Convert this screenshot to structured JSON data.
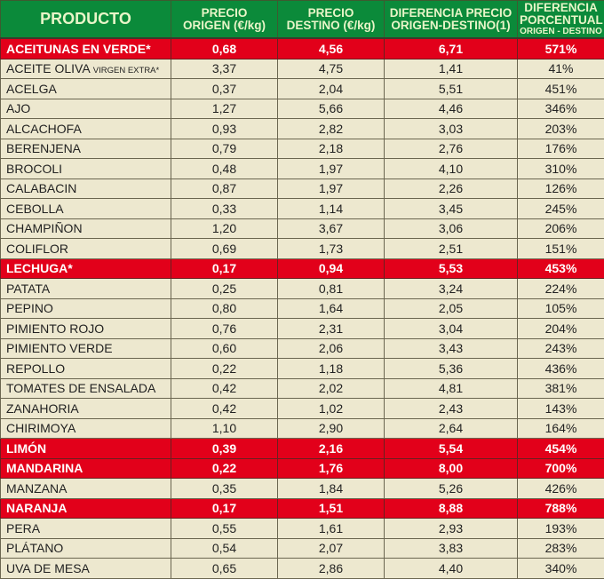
{
  "table": {
    "headers": {
      "product": "PRODUCTO",
      "origin_l1": "PRECIO",
      "origin_l2": "ORIGEN (€/kg)",
      "dest_l1": "PRECIO",
      "dest_l2": "DESTINO (€/kg)",
      "diff_l1": "DIFERENCIA PRECIO",
      "diff_l2": "ORIGEN-DESTINO(1)",
      "pct_l1": "DIFERENCIA",
      "pct_l2": "PORCENTUAL",
      "pct_l3": "ORIGEN - DESTINO"
    },
    "highlight_color": "#e2001a",
    "header_color": "#0b8a3a",
    "rows": [
      {
        "name": "ACEITUNAS EN VERDE*",
        "suffix": "",
        "origin": "0,68",
        "dest": "4,56",
        "diff": "6,71",
        "pct": "571%",
        "highlight": true
      },
      {
        "name": "ACEITE OLIVA ",
        "suffix": "VIRGEN EXTRA*",
        "origin": "3,37",
        "dest": "4,75",
        "diff": "1,41",
        "pct": "41%",
        "highlight": false
      },
      {
        "name": "ACELGA",
        "suffix": "",
        "origin": "0,37",
        "dest": "2,04",
        "diff": "5,51",
        "pct": "451%",
        "highlight": false
      },
      {
        "name": "AJO",
        "suffix": "",
        "origin": "1,27",
        "dest": "5,66",
        "diff": "4,46",
        "pct": "346%",
        "highlight": false
      },
      {
        "name": "ALCACHOFA",
        "suffix": "",
        "origin": "0,93",
        "dest": "2,82",
        "diff": "3,03",
        "pct": "203%",
        "highlight": false
      },
      {
        "name": "BERENJENA",
        "suffix": "",
        "origin": "0,79",
        "dest": "2,18",
        "diff": "2,76",
        "pct": "176%",
        "highlight": false
      },
      {
        "name": "BROCOLI",
        "suffix": "",
        "origin": "0,48",
        "dest": "1,97",
        "diff": "4,10",
        "pct": "310%",
        "highlight": false
      },
      {
        "name": "CALABACIN",
        "suffix": "",
        "origin": "0,87",
        "dest": "1,97",
        "diff": "2,26",
        "pct": "126%",
        "highlight": false
      },
      {
        "name": "CEBOLLA",
        "suffix": "",
        "origin": "0,33",
        "dest": "1,14",
        "diff": "3,45",
        "pct": "245%",
        "highlight": false
      },
      {
        "name": "CHAMPIÑON",
        "suffix": "",
        "origin": "1,20",
        "dest": "3,67",
        "diff": "3,06",
        "pct": "206%",
        "highlight": false
      },
      {
        "name": "COLIFLOR",
        "suffix": "",
        "origin": "0,69",
        "dest": "1,73",
        "diff": "2,51",
        "pct": "151%",
        "highlight": false
      },
      {
        "name": "LECHUGA*",
        "suffix": "",
        "origin": "0,17",
        "dest": "0,94",
        "diff": "5,53",
        "pct": "453%",
        "highlight": true
      },
      {
        "name": "PATATA",
        "suffix": "",
        "origin": "0,25",
        "dest": "0,81",
        "diff": "3,24",
        "pct": "224%",
        "highlight": false
      },
      {
        "name": "PEPINO",
        "suffix": "",
        "origin": "0,80",
        "dest": "1,64",
        "diff": "2,05",
        "pct": "105%",
        "highlight": false
      },
      {
        "name": "PIMIENTO ROJO",
        "suffix": "",
        "origin": "0,76",
        "dest": "2,31",
        "diff": "3,04",
        "pct": "204%",
        "highlight": false
      },
      {
        "name": "PIMIENTO VERDE",
        "suffix": "",
        "origin": "0,60",
        "dest": "2,06",
        "diff": "3,43",
        "pct": "243%",
        "highlight": false
      },
      {
        "name": "REPOLLO",
        "suffix": "",
        "origin": "0,22",
        "dest": "1,18",
        "diff": "5,36",
        "pct": "436%",
        "highlight": false
      },
      {
        "name": "TOMATES DE ENSALADA",
        "suffix": "",
        "origin": "0,42",
        "dest": "2,02",
        "diff": "4,81",
        "pct": "381%",
        "highlight": false
      },
      {
        "name": "ZANAHORIA",
        "suffix": "",
        "origin": "0,42",
        "dest": "1,02",
        "diff": "2,43",
        "pct": "143%",
        "highlight": false
      },
      {
        "name": "CHIRIMOYA",
        "suffix": "",
        "origin": "1,10",
        "dest": "2,90",
        "diff": "2,64",
        "pct": "164%",
        "highlight": false
      },
      {
        "name": "LIMÓN",
        "suffix": "",
        "origin": "0,39",
        "dest": "2,16",
        "diff": "5,54",
        "pct": "454%",
        "highlight": true
      },
      {
        "name": "MANDARINA",
        "suffix": "",
        "origin": "0,22",
        "dest": "1,76",
        "diff": "8,00",
        "pct": "700%",
        "highlight": true
      },
      {
        "name": "MANZANA",
        "suffix": "",
        "origin": "0,35",
        "dest": "1,84",
        "diff": "5,26",
        "pct": "426%",
        "highlight": false
      },
      {
        "name": "NARANJA",
        "suffix": "",
        "origin": "0,17",
        "dest": "1,51",
        "diff": "8,88",
        "pct": "788%",
        "highlight": true
      },
      {
        "name": "PERA",
        "suffix": "",
        "origin": "0,55",
        "dest": "1,61",
        "diff": "2,93",
        "pct": "193%",
        "highlight": false
      },
      {
        "name": "PLÁTANO",
        "suffix": "",
        "origin": "0,54",
        "dest": "2,07",
        "diff": "3,83",
        "pct": "283%",
        "highlight": false
      },
      {
        "name": "UVA DE MESA",
        "suffix": "",
        "origin": "0,65",
        "dest": "2,86",
        "diff": "4,40",
        "pct": "340%",
        "highlight": false
      }
    ]
  }
}
